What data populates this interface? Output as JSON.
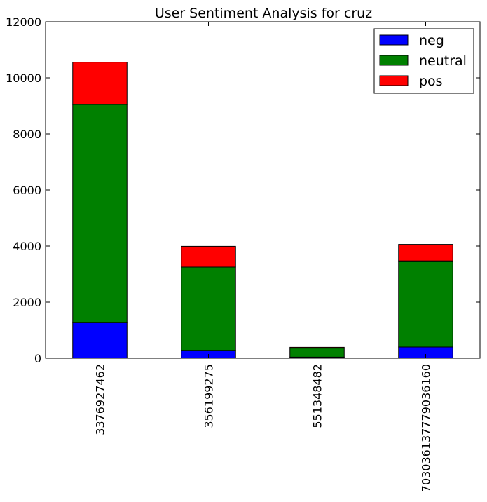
{
  "chart_data": {
    "type": "bar",
    "stacked": true,
    "title": "User Sentiment Analysis for cruz",
    "xlabel": "",
    "ylabel": "",
    "categories": [
      "3376927462",
      "356199275",
      "551348482",
      "703036137779036160"
    ],
    "series": [
      {
        "name": "neg",
        "color": "#0000ff",
        "values": [
          1280,
          280,
          40,
          400
        ]
      },
      {
        "name": "neutral",
        "color": "#008000",
        "values": [
          7770,
          2970,
          320,
          3070
        ]
      },
      {
        "name": "pos",
        "color": "#ff0000",
        "values": [
          1510,
          740,
          30,
          590
        ]
      }
    ],
    "ylim": [
      0,
      12000
    ],
    "yticks": [
      "0",
      "2000",
      "4000",
      "6000",
      "8000",
      "10000",
      "12000"
    ],
    "grid": false,
    "legend_position": "top-right"
  }
}
